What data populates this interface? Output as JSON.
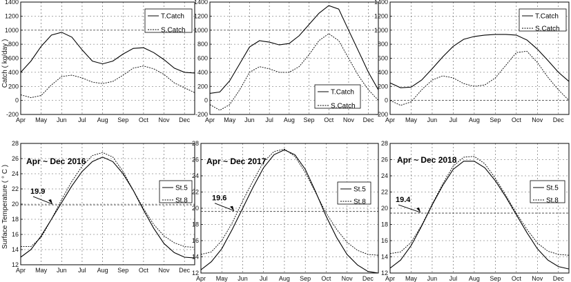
{
  "months": [
    "Apr",
    "May",
    "Jun",
    "Jul",
    "Aug",
    "Sep",
    "Oct",
    "Nov",
    "Dec"
  ],
  "catch_ylabel": "Catch ( kg/day )",
  "temp_ylabel": "Surface Temperature ( ° C )",
  "chart_data": [
    {
      "type": "line",
      "panel": "catch-2016",
      "title": "",
      "ylabel": "Catch ( kg/day )",
      "ylim": [
        -200,
        1400
      ],
      "yticks": [
        "-200",
        "0",
        "200",
        "400",
        "600",
        "800",
        "1000",
        "1200",
        "1400"
      ],
      "x": [
        0,
        0.5,
        1,
        1.5,
        2,
        2.5,
        3,
        3.5,
        4,
        4.5,
        5,
        5.5,
        6,
        6.5,
        7,
        7.5,
        8,
        8.5
      ],
      "series": [
        {
          "name": "T.Catch",
          "style": "solid",
          "values": [
            400,
            560,
            770,
            930,
            970,
            900,
            720,
            560,
            520,
            560,
            660,
            740,
            750,
            680,
            580,
            460,
            400,
            390
          ]
        },
        {
          "name": "S.Catch",
          "style": "dashed",
          "values": [
            80,
            40,
            70,
            220,
            340,
            360,
            320,
            260,
            240,
            270,
            360,
            460,
            490,
            450,
            370,
            250,
            180,
            110
          ]
        }
      ],
      "legend": "top-right",
      "ref_line": 1000
    },
    {
      "type": "line",
      "panel": "catch-2017",
      "title": "",
      "ylim": [
        -200,
        1400
      ],
      "yticks": [
        "-200",
        "0",
        "200",
        "400",
        "600",
        "800",
        "1000",
        "1200",
        "1400"
      ],
      "x": [
        0,
        0.5,
        1,
        1.5,
        2,
        2.5,
        3,
        3.5,
        4,
        4.5,
        5,
        5.5,
        6,
        6.5,
        7,
        7.5,
        8,
        8.5
      ],
      "series": [
        {
          "name": "T.Catch",
          "style": "solid",
          "values": [
            100,
            120,
            280,
            520,
            760,
            850,
            830,
            790,
            810,
            920,
            1080,
            1240,
            1350,
            1300,
            1000,
            700,
            400,
            150
          ]
        },
        {
          "name": "S.Catch",
          "style": "dashed",
          "values": [
            -60,
            -140,
            -60,
            150,
            400,
            480,
            450,
            400,
            400,
            480,
            650,
            850,
            950,
            850,
            600,
            350,
            150,
            0
          ]
        }
      ],
      "legend": "bottom-right",
      "ref_line": 1000
    },
    {
      "type": "line",
      "panel": "catch-2018",
      "title": "",
      "ylim": [
        -200,
        1400
      ],
      "yticks": [
        "-200",
        "0",
        "200",
        "400",
        "600",
        "800",
        "1000",
        "1200",
        "1400"
      ],
      "x": [
        0,
        0.5,
        1,
        1.5,
        2,
        2.5,
        3,
        3.5,
        4,
        4.5,
        5,
        5.5,
        6,
        6.5,
        7,
        7.5,
        8,
        8.5
      ],
      "series": [
        {
          "name": "T.Catch",
          "style": "solid",
          "values": [
            250,
            180,
            190,
            290,
            450,
            620,
            770,
            870,
            910,
            930,
            940,
            940,
            930,
            860,
            730,
            570,
            400,
            270
          ]
        },
        {
          "name": "S.Catch",
          "style": "dashed",
          "values": [
            0,
            -70,
            -20,
            150,
            290,
            350,
            320,
            240,
            200,
            220,
            320,
            500,
            680,
            700,
            540,
            330,
            150,
            0
          ]
        }
      ],
      "legend": "top-right",
      "ref_line": 0
    },
    {
      "type": "line",
      "panel": "temp-2016",
      "title": "Apr ~ Dec 2016",
      "ylabel": "Surface Temperature ( ° C )",
      "ylim": [
        12,
        28
      ],
      "yticks": [
        "12",
        "14",
        "16",
        "18",
        "20",
        "22",
        "24",
        "26",
        "28"
      ],
      "x": [
        0,
        0.5,
        1,
        1.5,
        2,
        2.5,
        3,
        3.5,
        4,
        4.5,
        5,
        5.5,
        6,
        6.5,
        7,
        7.5,
        8,
        8.5
      ],
      "series": [
        {
          "name": "St.5",
          "style": "solid",
          "values": [
            13.0,
            14.0,
            15.8,
            18.0,
            20.2,
            22.4,
            24.3,
            25.6,
            26.2,
            25.6,
            24.0,
            21.8,
            19.2,
            16.8,
            14.8,
            13.6,
            13.0,
            12.9
          ]
        },
        {
          "name": "St.8",
          "style": "dashed",
          "values": [
            14.4,
            14.4,
            15.6,
            18.0,
            20.6,
            23.0,
            25.0,
            26.4,
            26.8,
            26.2,
            24.3,
            21.8,
            19.4,
            17.3,
            15.8,
            14.9,
            14.4,
            14.3
          ]
        }
      ],
      "legend": "right",
      "annotation": {
        "label": "19.9",
        "value": 19.9
      }
    },
    {
      "type": "line",
      "panel": "temp-2017",
      "title": "Apr ~ Dec 2017",
      "ylim": [
        12,
        28
      ],
      "yticks": [
        "12",
        "14",
        "16",
        "18",
        "20",
        "22",
        "24",
        "26",
        "28"
      ],
      "x": [
        0,
        0.5,
        1,
        1.5,
        2,
        2.5,
        3,
        3.5,
        4,
        4.5,
        5,
        5.5,
        6,
        6.5,
        7,
        7.5,
        8,
        8.5
      ],
      "series": [
        {
          "name": "St.5",
          "style": "solid",
          "values": [
            12.4,
            13.4,
            15.0,
            17.4,
            20.0,
            22.6,
            25.0,
            26.6,
            27.2,
            26.6,
            24.8,
            22.0,
            19.0,
            16.4,
            14.3,
            13.0,
            12.2,
            12.0
          ]
        },
        {
          "name": "St.8",
          "style": "dashed",
          "values": [
            14.3,
            14.6,
            16.0,
            18.2,
            20.9,
            23.4,
            25.7,
            27.0,
            27.3,
            26.4,
            24.4,
            21.9,
            19.4,
            17.4,
            15.8,
            14.8,
            14.3,
            14.2
          ]
        }
      ],
      "legend": "right",
      "annotation": {
        "label": "19.6",
        "value": 19.6
      }
    },
    {
      "type": "line",
      "panel": "temp-2018",
      "title": "Apr ~ Dec 2018",
      "ylim": [
        12,
        28
      ],
      "yticks": [
        "12",
        "14",
        "16",
        "18",
        "20",
        "22",
        "24",
        "26",
        "28"
      ],
      "x": [
        0,
        0.5,
        1,
        1.5,
        2,
        2.5,
        3,
        3.5,
        4,
        4.5,
        5,
        5.5,
        6,
        6.5,
        7,
        7.5,
        8,
        8.5
      ],
      "series": [
        {
          "name": "St.5",
          "style": "solid",
          "values": [
            12.6,
            13.6,
            15.4,
            17.8,
            20.4,
            22.8,
            24.8,
            25.8,
            25.8,
            25.0,
            23.4,
            21.4,
            19.2,
            17.0,
            15.0,
            13.6,
            12.8,
            12.5
          ]
        },
        {
          "name": "St.8",
          "style": "dashed",
          "values": [
            14.4,
            14.6,
            15.8,
            17.9,
            20.5,
            23.0,
            25.2,
            26.3,
            26.4,
            25.5,
            23.7,
            21.6,
            19.4,
            17.4,
            15.7,
            14.7,
            14.3,
            14.2
          ]
        }
      ],
      "legend": "right",
      "annotation": {
        "label": "19.4",
        "value": 19.4
      }
    }
  ]
}
